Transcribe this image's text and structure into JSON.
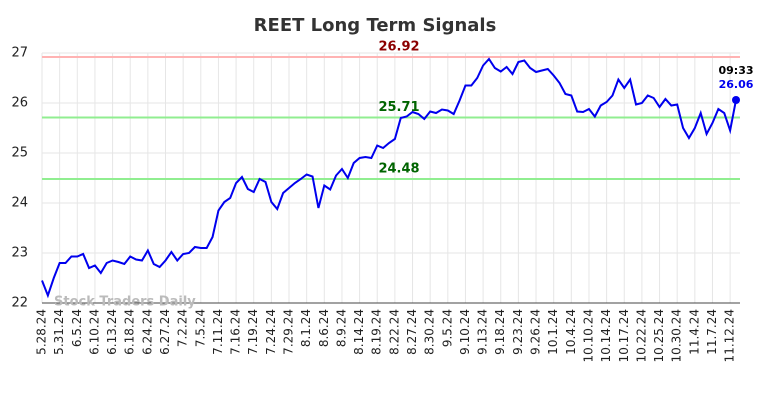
{
  "chart_data": {
    "type": "line",
    "title": "REET Long Term Signals",
    "watermark": "Stock Traders Daily",
    "categories": [
      "5.28.24",
      null,
      null,
      "5.31.24",
      null,
      null,
      "6.5.24",
      null,
      null,
      "6.10.24",
      null,
      null,
      "6.13.24",
      null,
      null,
      "6.18.24",
      null,
      null,
      "6.24.24",
      null,
      null,
      "6.27.24",
      null,
      null,
      "7.2.24",
      null,
      null,
      "7.5.24",
      null,
      null,
      "7.11.24",
      null,
      null,
      "7.16.24",
      null,
      null,
      "7.19.24",
      null,
      null,
      "7.24.24",
      null,
      null,
      "7.29.24",
      null,
      null,
      "8.1.24",
      null,
      null,
      "8.6.24",
      null,
      null,
      "8.9.24",
      null,
      null,
      "8.14.24",
      null,
      null,
      "8.19.24",
      null,
      null,
      "8.22.24",
      null,
      null,
      "8.27.24",
      null,
      null,
      "8.30.24",
      null,
      null,
      "9.5.24",
      null,
      null,
      "9.10.24",
      null,
      null,
      "9.13.24",
      null,
      null,
      "9.18.24",
      null,
      null,
      "9.23.24",
      null,
      null,
      "9.26.24",
      null,
      null,
      "10.1.24",
      null,
      null,
      "10.4.24",
      null,
      null,
      "10.10.24",
      null,
      null,
      "10.14.24",
      null,
      null,
      "10.17.24",
      null,
      null,
      "10.22.24",
      null,
      null,
      "10.25.24",
      null,
      null,
      "10.30.24",
      null,
      null,
      "11.4.24",
      null,
      null,
      "11.7.24",
      null,
      null,
      "11.12.24",
      null
    ],
    "values": [
      22.45,
      22.15,
      22.5,
      22.8,
      22.8,
      22.93,
      22.93,
      22.98,
      22.7,
      22.75,
      22.6,
      22.8,
      22.85,
      22.82,
      22.78,
      22.93,
      22.87,
      22.85,
      23.05,
      22.78,
      22.72,
      22.85,
      23.02,
      22.85,
      22.98,
      23.0,
      23.12,
      23.1,
      23.1,
      23.32,
      23.85,
      24.02,
      24.1,
      24.4,
      24.52,
      24.28,
      24.22,
      24.48,
      24.42,
      24.02,
      23.88,
      24.2,
      24.3,
      24.4,
      24.48,
      24.57,
      24.53,
      23.9,
      24.35,
      24.27,
      24.55,
      24.68,
      24.5,
      24.8,
      24.9,
      24.92,
      24.9,
      25.15,
      25.1,
      25.2,
      25.28,
      25.7,
      25.73,
      25.82,
      25.78,
      25.68,
      25.83,
      25.8,
      25.87,
      25.85,
      25.78,
      26.05,
      26.35,
      26.35,
      26.5,
      26.75,
      26.88,
      26.7,
      26.63,
      26.72,
      26.58,
      26.82,
      26.85,
      26.7,
      26.62,
      26.65,
      26.68,
      26.55,
      26.4,
      26.18,
      26.15,
      25.83,
      25.82,
      25.88,
      25.73,
      25.95,
      26.02,
      26.15,
      26.47,
      26.3,
      26.47,
      25.97,
      26.0,
      26.15,
      26.1,
      25.92,
      26.08,
      25.95,
      25.97,
      25.5,
      25.3,
      25.5,
      25.8,
      25.38,
      25.6,
      25.88,
      25.8,
      25.45,
      26.06
    ],
    "color": "#0000ee",
    "last_time": "09:33",
    "hlines": [
      {
        "value": 26.92,
        "color": "#ffb3b3",
        "label_color": "#8b0000"
      },
      {
        "value": 25.71,
        "color": "#90ee90",
        "label_color": "#006400"
      },
      {
        "value": 24.48,
        "color": "#90ee90",
        "label_color": "#006400"
      }
    ],
    "ylim": [
      22,
      27
    ],
    "yticks": [
      22,
      23,
      24,
      25,
      26,
      27
    ],
    "grid": true
  }
}
